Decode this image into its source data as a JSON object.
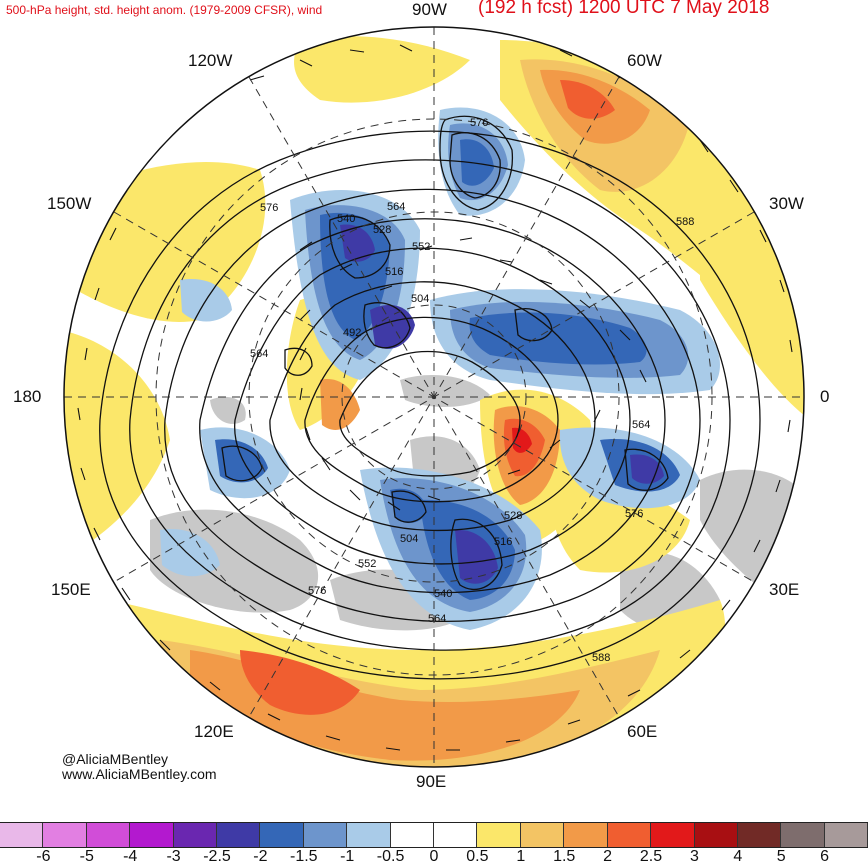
{
  "header": {
    "left_title": "500-hPa height, std. height anom. (1979-2009 CFSR), wind",
    "right_title": "(192 h fcst) 1200 UTC 7 May 2018"
  },
  "longitude_labels": {
    "lon_90w": "90W",
    "lon_60w": "60W",
    "lon_30w": "30W",
    "lon_0": "0",
    "lon_30e": "30E",
    "lon_60e": "60E",
    "lon_90e": "90E",
    "lon_120e": "120E",
    "lon_150e": "150E",
    "lon_180": "180",
    "lon_150w": "150W",
    "lon_120w": "120W"
  },
  "contour_labels": {
    "c576_a": "576",
    "c576_b": "576",
    "c576_c": "576",
    "c576_d": "576",
    "c588_a": "588",
    "c588_b": "588",
    "c564_a": "564",
    "c564_b": "564",
    "c564_c": "564",
    "c564_d": "564",
    "c552_a": "552",
    "c552_b": "552",
    "c540_a": "540",
    "c540_b": "540",
    "c528_a": "528",
    "c528_b": "528",
    "c516_a": "516",
    "c516_b": "516",
    "c504_a": "504",
    "c504_b": "504",
    "c492": "492"
  },
  "credits": {
    "handle": "@AliciaMBentley",
    "website": "www.AliciaMBentley.com"
  },
  "colorbar": {
    "colors": [
      "#e9b8e9",
      "#e27fe2",
      "#d14dd8",
      "#b319cf",
      "#6a27b0",
      "#3f3aa6",
      "#3467b7",
      "#6d95cc",
      "#a9cbe8",
      "#ffffff",
      "#ffffff",
      "#fbe76a",
      "#f3c464",
      "#f29a48",
      "#f05e30",
      "#e2191a",
      "#a80f12",
      "#712a26",
      "#7e6d6d",
      "#a79a9a"
    ],
    "tick_labels": [
      "-6",
      "-5",
      "-4",
      "-3",
      "-2.5",
      "-2",
      "-1.5",
      "-1",
      "-0.5",
      "0",
      "0.5",
      "1",
      "1.5",
      "2",
      "2.5",
      "3",
      "4",
      "5",
      "6"
    ]
  },
  "colors": {
    "title_red": "#e0101a",
    "land_gray": "#c8c8c8",
    "positive_anomaly": "#f29a48",
    "negative_anomaly": "#3467b7"
  }
}
